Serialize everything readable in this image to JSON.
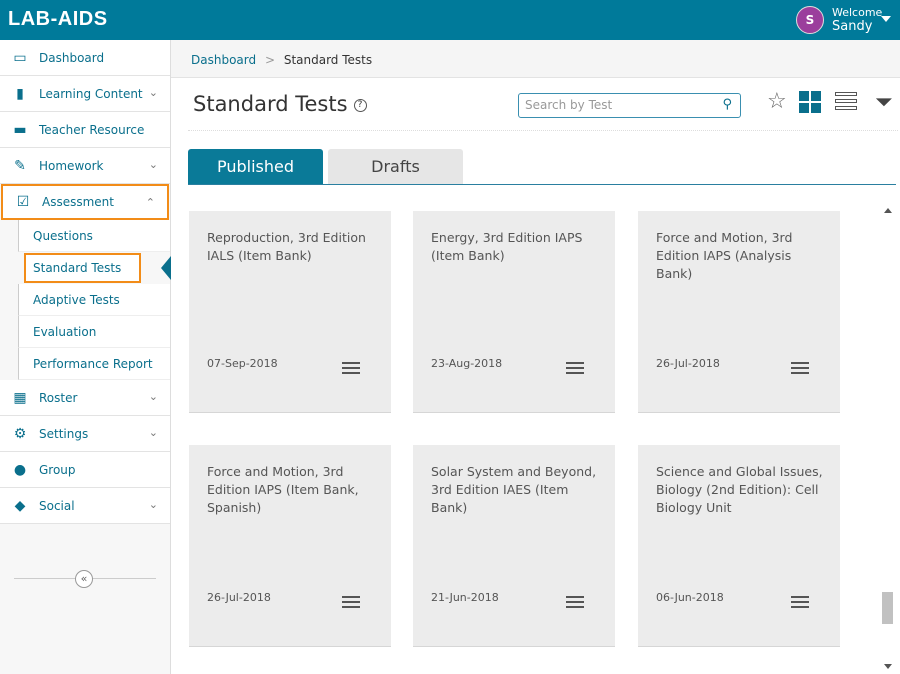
{
  "header": {
    "logo": "LAB-AIDS",
    "avatar_initial": "S",
    "welcome": "Welcome",
    "user": "Sandy"
  },
  "sidebar": {
    "items": [
      {
        "label": "Dashboard",
        "icon": "monitor-icon",
        "chevron": ""
      },
      {
        "label": "Learning Content",
        "icon": "book-icon",
        "chevron": "down"
      },
      {
        "label": "Teacher Resource",
        "icon": "briefcase-icon",
        "chevron": ""
      },
      {
        "label": "Homework",
        "icon": "pencil-icon",
        "chevron": "down"
      },
      {
        "label": "Assessment",
        "icon": "checkbox-icon",
        "chevron": "up"
      }
    ],
    "sub": [
      "Questions",
      "Standard Tests",
      "Adaptive Tests",
      "Evaluation",
      "Performance Report"
    ],
    "items2": [
      {
        "label": "Roster",
        "icon": "calendar-icon",
        "chevron": "down"
      },
      {
        "label": "Settings",
        "icon": "gear-icon",
        "chevron": "down"
      },
      {
        "label": "Group",
        "icon": "group-icon",
        "chevron": ""
      },
      {
        "label": "Social",
        "icon": "chat-icon",
        "chevron": "down"
      }
    ]
  },
  "breadcrumb": {
    "home": "Dashboard",
    "sep": ">",
    "current": "Standard Tests"
  },
  "page": {
    "title": "Standard Tests",
    "help": "?",
    "search_placeholder": "Search by Test"
  },
  "tabs": {
    "published": "Published",
    "drafts": "Drafts"
  },
  "cards": [
    {
      "title": "Reproduction, 3rd Edition IALS (Item Bank)",
      "date": "07-Sep-2018"
    },
    {
      "title": "Energy, 3rd Edition IAPS (Item Bank)",
      "date": "23-Aug-2018"
    },
    {
      "title": "Force and Motion, 3rd Edition IAPS (Analysis Bank)",
      "date": "26-Jul-2018"
    },
    {
      "title": "Force and Motion, 3rd Edition IAPS (Item Bank, Spanish)",
      "date": "26-Jul-2018"
    },
    {
      "title": "Solar System and Beyond, 3rd Edition IAES (Item Bank)",
      "date": "21-Jun-2018"
    },
    {
      "title": "Science and Global Issues, Biology (2nd Edition): Cell Biology Unit",
      "date": "06-Jun-2018"
    }
  ]
}
